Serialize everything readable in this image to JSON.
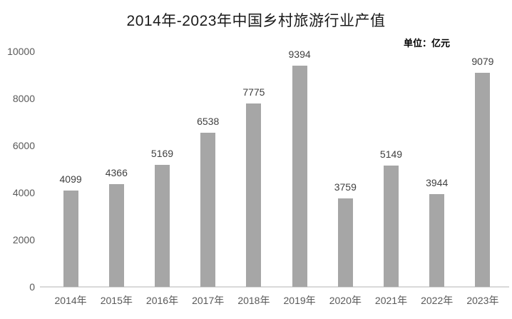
{
  "chart_data": {
    "type": "bar",
    "title": "2014年-2023年中国乡村旅游行业产值",
    "unit_label": "单位：亿元",
    "categories": [
      "2014年",
      "2015年",
      "2016年",
      "2017年",
      "2018年",
      "2019年",
      "2020年",
      "2021年",
      "2022年",
      "2023年"
    ],
    "values": [
      4099,
      4366,
      5169,
      6538,
      7775,
      9394,
      3759,
      5149,
      3944,
      9079
    ],
    "xlabel": "",
    "ylabel": "",
    "ylim": [
      0,
      10000
    ],
    "yticks": [
      0,
      2000,
      4000,
      6000,
      8000,
      10000
    ],
    "grid": false,
    "legend": "none",
    "colors": {
      "bar": "#a6a6a6",
      "value_label": "#404040",
      "axis_text": "#595959",
      "axis_line": "#d9d9d9",
      "title": "#1a1a1a"
    }
  }
}
